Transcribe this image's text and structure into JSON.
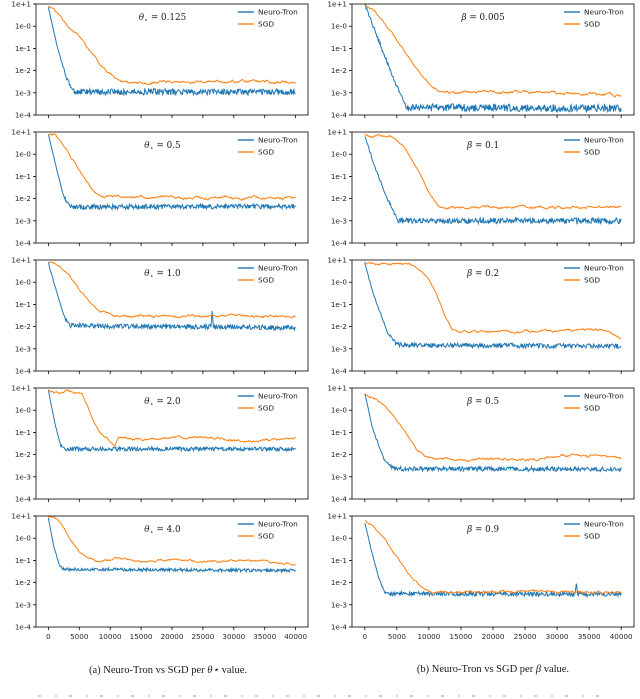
{
  "figure": {
    "background": "#ffffff",
    "axis_color": "#000000",
    "tick_label_color": "#262626",
    "colors": {
      "neuro_tron": "#1f77b4",
      "sgd": "#ff7f0e"
    },
    "legend_labels": [
      "Neuro-Tron",
      "SGD"
    ]
  },
  "captions": [
    {
      "prefix": "(a) Neuro-Tron vs SGD per ",
      "symbol": "θ⋆",
      "suffix": " value."
    },
    {
      "prefix": "(b) Neuro-Tron vs SGD per ",
      "symbol": "β",
      "suffix": " value."
    }
  ],
  "axes_common": {
    "xlim": [
      0,
      40000
    ],
    "xticks": [
      0,
      5000,
      10000,
      15000,
      20000,
      25000,
      30000,
      35000,
      40000
    ],
    "xtick_labels": [
      "0",
      "5000",
      "10000",
      "15000",
      "20000",
      "25000",
      "30000",
      "35000",
      "40000"
    ],
    "ylim": [
      0.0001,
      10
    ],
    "yscale": "log",
    "ytick_labels": [
      "1e+1",
      "1e-0",
      "1e-1",
      "1e-2",
      "1e-3",
      "1e-4"
    ],
    "ytick_logvalues": [
      1,
      0,
      -1,
      -2,
      -3,
      -4
    ],
    "grid": false,
    "legend_position": "upper-right"
  },
  "chart_data": [
    {
      "type": "line",
      "title": {
        "sym": "θ",
        "sub": "⋆",
        "eq": " = ",
        "val": "0.125"
      },
      "series": [
        {
          "name": "Neuro-Tron",
          "color": "#1f77b4",
          "noise": 0.14,
          "jitter": "fast",
          "anchors": [
            [
              0,
              7
            ],
            [
              1500,
              0.1
            ],
            [
              3000,
              0.004
            ],
            [
              4200,
              0.0011
            ],
            [
              40000,
              0.0011
            ]
          ]
        },
        {
          "name": "SGD",
          "color": "#ff7f0e",
          "noise": 0.09,
          "jitter": "slow",
          "anchors": [
            [
              0,
              8
            ],
            [
              1000,
              6
            ],
            [
              3000,
              1.2
            ],
            [
              5000,
              0.35
            ],
            [
              7000,
              0.06
            ],
            [
              9000,
              0.012
            ],
            [
              11000,
              0.004
            ],
            [
              12500,
              0.0028
            ],
            [
              20000,
              0.003
            ],
            [
              30000,
              0.0033
            ],
            [
              40000,
              0.003
            ]
          ]
        }
      ]
    },
    {
      "type": "line",
      "title": {
        "sym": "β",
        "sub": "",
        "eq": " = ",
        "val": "0.005"
      },
      "series": [
        {
          "name": "Neuro-Tron",
          "color": "#1f77b4",
          "noise": 0.17,
          "jitter": "fast",
          "anchors": [
            [
              0,
              9
            ],
            [
              2000,
              0.3
            ],
            [
              4500,
              0.004
            ],
            [
              6500,
              0.00022
            ],
            [
              40000,
              0.0002
            ]
          ]
        },
        {
          "name": "SGD",
          "color": "#ff7f0e",
          "noise": 0.1,
          "jitter": "slow",
          "anchors": [
            [
              0,
              9
            ],
            [
              1500,
              5
            ],
            [
              3500,
              1
            ],
            [
              6000,
              0.1
            ],
            [
              8500,
              0.008
            ],
            [
              10500,
              0.0015
            ],
            [
              12000,
              0.001
            ],
            [
              25000,
              0.0011
            ],
            [
              40000,
              0.0008
            ]
          ]
        }
      ]
    },
    {
      "type": "line",
      "title": {
        "sym": "θ",
        "sub": "⋆",
        "eq": " = ",
        "val": "0.5"
      },
      "series": [
        {
          "name": "Neuro-Tron",
          "color": "#1f77b4",
          "noise": 0.11,
          "jitter": "fast",
          "anchors": [
            [
              0,
              8
            ],
            [
              1200,
              0.3
            ],
            [
              2500,
              0.012
            ],
            [
              3500,
              0.0042
            ],
            [
              40000,
              0.0045
            ]
          ]
        },
        {
          "name": "SGD",
          "color": "#ff7f0e",
          "noise": 0.09,
          "jitter": "slow",
          "anchors": [
            [
              0,
              8
            ],
            [
              1000,
              7
            ],
            [
              2000,
              3.5
            ],
            [
              3500,
              0.8
            ],
            [
              5000,
              0.2
            ],
            [
              6500,
              0.045
            ],
            [
              7500,
              0.018
            ],
            [
              8500,
              0.013
            ],
            [
              20000,
              0.011
            ],
            [
              40000,
              0.011
            ]
          ]
        }
      ]
    },
    {
      "type": "line",
      "title": {
        "sym": "β",
        "sub": "",
        "eq": " = ",
        "val": "0.1"
      },
      "series": [
        {
          "name": "Neuro-Tron",
          "color": "#1f77b4",
          "noise": 0.13,
          "jitter": "fast",
          "anchors": [
            [
              0,
              7
            ],
            [
              1500,
              0.3
            ],
            [
              3500,
              0.01
            ],
            [
              5200,
              0.001
            ],
            [
              40000,
              0.001
            ]
          ]
        },
        {
          "name": "SGD",
          "color": "#ff7f0e",
          "noise": 0.09,
          "jitter": "slow",
          "anchors": [
            [
              0,
              7
            ],
            [
              2000,
              6.5
            ],
            [
              4500,
              5.5
            ],
            [
              6500,
              1.5
            ],
            [
              8500,
              0.15
            ],
            [
              10000,
              0.02
            ],
            [
              11500,
              0.005
            ],
            [
              12500,
              0.004
            ],
            [
              30000,
              0.004
            ],
            [
              40000,
              0.0045
            ]
          ]
        }
      ]
    },
    {
      "type": "line",
      "title": {
        "sym": "θ",
        "sub": "⋆",
        "eq": " = ",
        "val": "1.0"
      },
      "series": [
        {
          "name": "Neuro-Tron",
          "color": "#1f77b4",
          "noise": 0.11,
          "jitter": "fast",
          "anchors": [
            [
              0,
              7
            ],
            [
              1200,
              0.5
            ],
            [
              2500,
              0.03
            ],
            [
              3500,
              0.011
            ],
            [
              40000,
              0.009
            ]
          ],
          "spikes": [
            [
              26500,
              0.05
            ]
          ]
        },
        {
          "name": "SGD",
          "color": "#ff7f0e",
          "noise": 0.08,
          "jitter": "slow",
          "anchors": [
            [
              0,
              8
            ],
            [
              1200,
              7
            ],
            [
              3000,
              2.5
            ],
            [
              5000,
              0.5
            ],
            [
              6800,
              0.12
            ],
            [
              8500,
              0.045
            ],
            [
              10500,
              0.03
            ],
            [
              25000,
              0.031
            ],
            [
              40000,
              0.028
            ]
          ]
        }
      ]
    },
    {
      "type": "line",
      "title": {
        "sym": "β",
        "sub": "",
        "eq": " = ",
        "val": "0.2"
      },
      "series": [
        {
          "name": "Neuro-Tron",
          "color": "#1f77b4",
          "noise": 0.11,
          "jitter": "fast",
          "anchors": [
            [
              0,
              7
            ],
            [
              1500,
              0.2
            ],
            [
              3500,
              0.006
            ],
            [
              5000,
              0.0015
            ],
            [
              40000,
              0.0013
            ]
          ]
        },
        {
          "name": "SGD",
          "color": "#ff7f0e",
          "noise": 0.08,
          "jitter": "slow",
          "anchors": [
            [
              0,
              7
            ],
            [
              3000,
              6.5
            ],
            [
              7500,
              6
            ],
            [
              9500,
              2
            ],
            [
              11000,
              0.4
            ],
            [
              12500,
              0.03
            ],
            [
              13500,
              0.009
            ],
            [
              15000,
              0.006
            ],
            [
              25000,
              0.006
            ],
            [
              37000,
              0.0075
            ],
            [
              40000,
              0.003
            ]
          ]
        }
      ]
    },
    {
      "type": "line",
      "title": {
        "sym": "θ",
        "sub": "⋆",
        "eq": " = ",
        "val": "2.0"
      },
      "series": [
        {
          "name": "Neuro-Tron",
          "color": "#1f77b4",
          "noise": 0.09,
          "jitter": "fast",
          "anchors": [
            [
              0,
              8
            ],
            [
              1000,
              0.3
            ],
            [
              2000,
              0.025
            ],
            [
              2800,
              0.018
            ],
            [
              40000,
              0.018
            ]
          ]
        },
        {
          "name": "SGD",
          "color": "#ff7f0e",
          "noise": 0.08,
          "jitter": "slow",
          "anchors": [
            [
              0,
              8
            ],
            [
              800,
              6.5
            ],
            [
              2000,
              6
            ],
            [
              3200,
              7.5
            ],
            [
              4500,
              6.5
            ],
            [
              5500,
              5
            ],
            [
              6500,
              1.2
            ],
            [
              7500,
              0.25
            ],
            [
              8500,
              0.09
            ],
            [
              9700,
              0.05
            ],
            [
              10700,
              0.022
            ],
            [
              11300,
              0.06
            ],
            [
              15000,
              0.05
            ],
            [
              25000,
              0.06
            ],
            [
              33000,
              0.04
            ],
            [
              40000,
              0.055
            ]
          ]
        }
      ]
    },
    {
      "type": "line",
      "title": {
        "sym": "β",
        "sub": "",
        "eq": " = ",
        "val": "0.5"
      },
      "series": [
        {
          "name": "Neuro-Tron",
          "color": "#1f77b4",
          "noise": 0.1,
          "jitter": "fast",
          "anchors": [
            [
              0,
              6
            ],
            [
              1200,
              0.15
            ],
            [
              3000,
              0.006
            ],
            [
              4500,
              0.0023
            ],
            [
              40000,
              0.0022
            ]
          ]
        },
        {
          "name": "SGD",
          "color": "#ff7f0e",
          "noise": 0.09,
          "jitter": "slow",
          "anchors": [
            [
              0,
              6
            ],
            [
              1500,
              3.5
            ],
            [
              3000,
              1.8
            ],
            [
              4800,
              0.45
            ],
            [
              6500,
              0.08
            ],
            [
              8200,
              0.015
            ],
            [
              9500,
              0.008
            ],
            [
              10500,
              0.0065
            ],
            [
              25000,
              0.006
            ],
            [
              33000,
              0.01
            ],
            [
              40000,
              0.007
            ]
          ]
        }
      ]
    },
    {
      "type": "line",
      "title": {
        "sym": "θ",
        "sub": "⋆",
        "eq": " = ",
        "val": "4.0"
      },
      "series": [
        {
          "name": "Neuro-Tron",
          "color": "#1f77b4",
          "noise": 0.07,
          "jitter": "fast",
          "anchors": [
            [
              0,
              8
            ],
            [
              900,
              0.4
            ],
            [
              1800,
              0.06
            ],
            [
              2500,
              0.04
            ],
            [
              40000,
              0.035
            ]
          ]
        },
        {
          "name": "SGD",
          "color": "#ff7f0e",
          "noise": 0.07,
          "jitter": "slow",
          "anchors": [
            [
              0,
              9
            ],
            [
              1000,
              8.5
            ],
            [
              2200,
              4
            ],
            [
              3500,
              1
            ],
            [
              5000,
              0.25
            ],
            [
              6500,
              0.12
            ],
            [
              8000,
              0.085
            ],
            [
              11000,
              0.12
            ],
            [
              15000,
              0.09
            ],
            [
              20000,
              0.11
            ],
            [
              25000,
              0.09
            ],
            [
              30000,
              0.1
            ],
            [
              35000,
              0.09
            ],
            [
              40000,
              0.065
            ]
          ]
        }
      ]
    },
    {
      "type": "line",
      "title": {
        "sym": "β",
        "sub": "",
        "eq": " = ",
        "val": "0.9"
      },
      "series": [
        {
          "name": "Neuro-Tron",
          "color": "#1f77b4",
          "noise": 0.1,
          "jitter": "fast",
          "anchors": [
            [
              0,
              5
            ],
            [
              1000,
              0.3
            ],
            [
              2200,
              0.015
            ],
            [
              3200,
              0.0032
            ],
            [
              40000,
              0.003
            ]
          ],
          "spikes": [
            [
              33000,
              0.009
            ]
          ]
        },
        {
          "name": "SGD",
          "color": "#ff7f0e",
          "noise": 0.08,
          "jitter": "slow",
          "anchors": [
            [
              0,
              6
            ],
            [
              800,
              4.5
            ],
            [
              2000,
              2
            ],
            [
              3500,
              0.6
            ],
            [
              5500,
              0.09
            ],
            [
              7500,
              0.015
            ],
            [
              9000,
              0.006
            ],
            [
              10500,
              0.0037
            ],
            [
              25000,
              0.004
            ],
            [
              40000,
              0.0035
            ]
          ]
        }
      ]
    }
  ]
}
